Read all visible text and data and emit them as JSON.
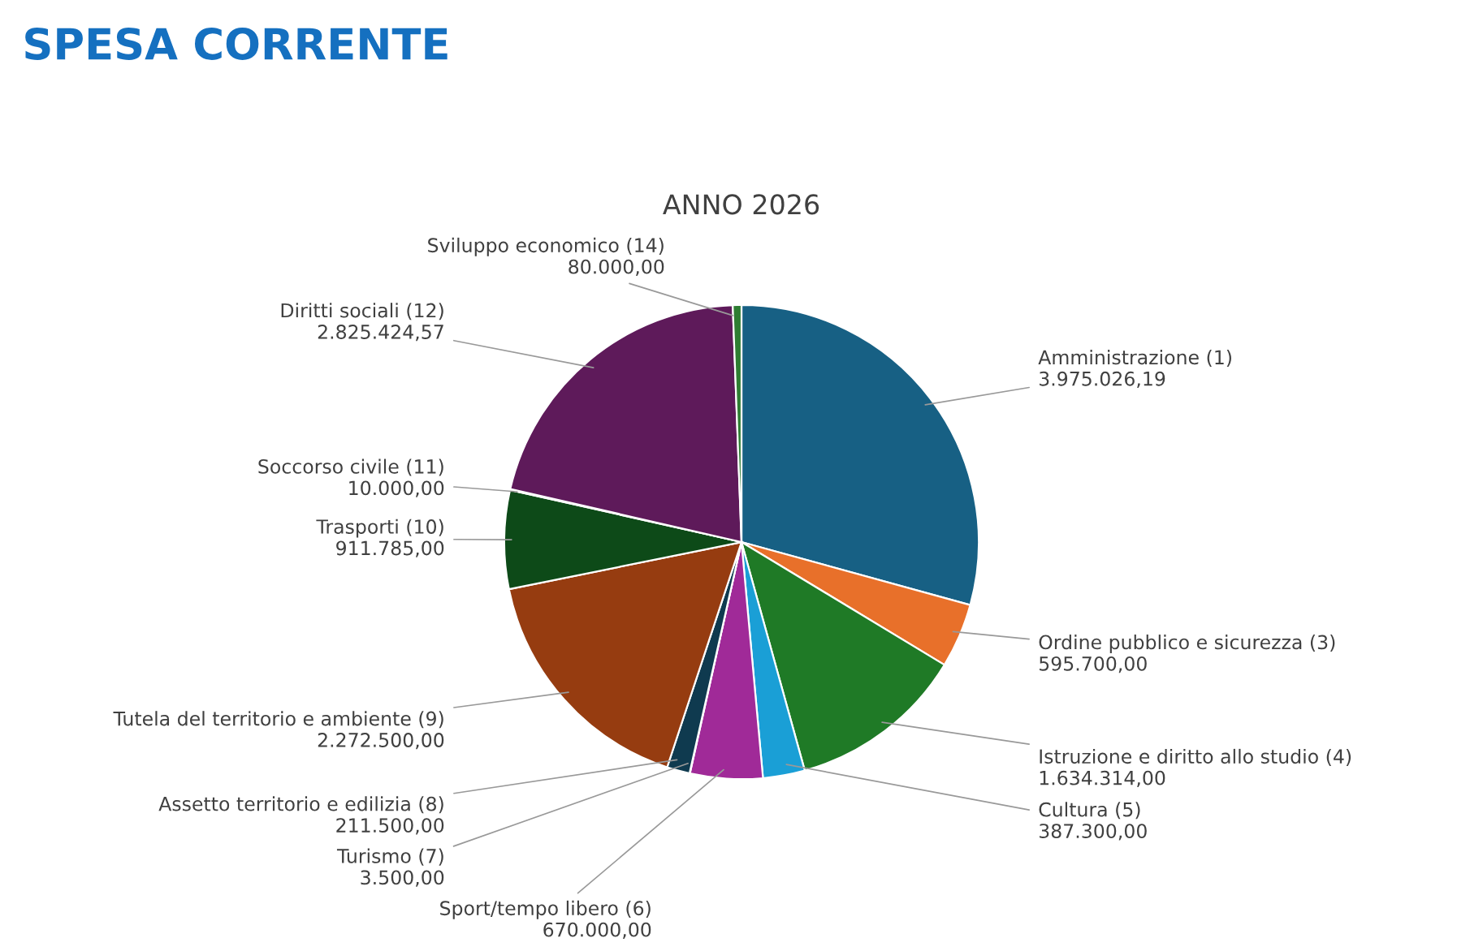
{
  "chart_data": {
    "type": "pie",
    "title": "SPESA CORRENTE",
    "subtitle": "ANNO 2026",
    "categories": [
      "Amministrazione (1)",
      "Ordine pubblico e sicurezza (3)",
      "Istruzione e diritto allo studio (4)",
      "Cultura (5)",
      "Sport/tempo libero (6)",
      "Turismo (7)",
      "Assetto territorio e edilizia (8)",
      "Tutela del territorio e ambiente (9)",
      "Trasporti (10)",
      "Soccorso civile (11)",
      "Diritti sociali (12)",
      "Sviluppo economico (14)"
    ],
    "values": [
      3975026.19,
      595700.0,
      1634314.0,
      387300.0,
      670000.0,
      3500.0,
      211500.0,
      2272500.0,
      911785.0,
      10000.0,
      2825424.57,
      80000.0
    ],
    "value_labels": [
      "3.975.026,19",
      "595.700,00",
      "1.634.314,00",
      "387.300,00",
      "670.000,00",
      "3.500,00",
      "211.500,00",
      "2.272.500,00",
      "911.785,00",
      "10.000,00",
      "2.825.424,57",
      "80.000,00"
    ],
    "colors": [
      "#176084",
      "#e8702a",
      "#1f7a26",
      "#1a9fd6",
      "#a02a98",
      "#5cb85c",
      "#0f3a4f",
      "#963c10",
      "#0d4a18",
      "#1a6085",
      "#5e1a5a",
      "#2e7d32"
    ],
    "legend": false
  }
}
